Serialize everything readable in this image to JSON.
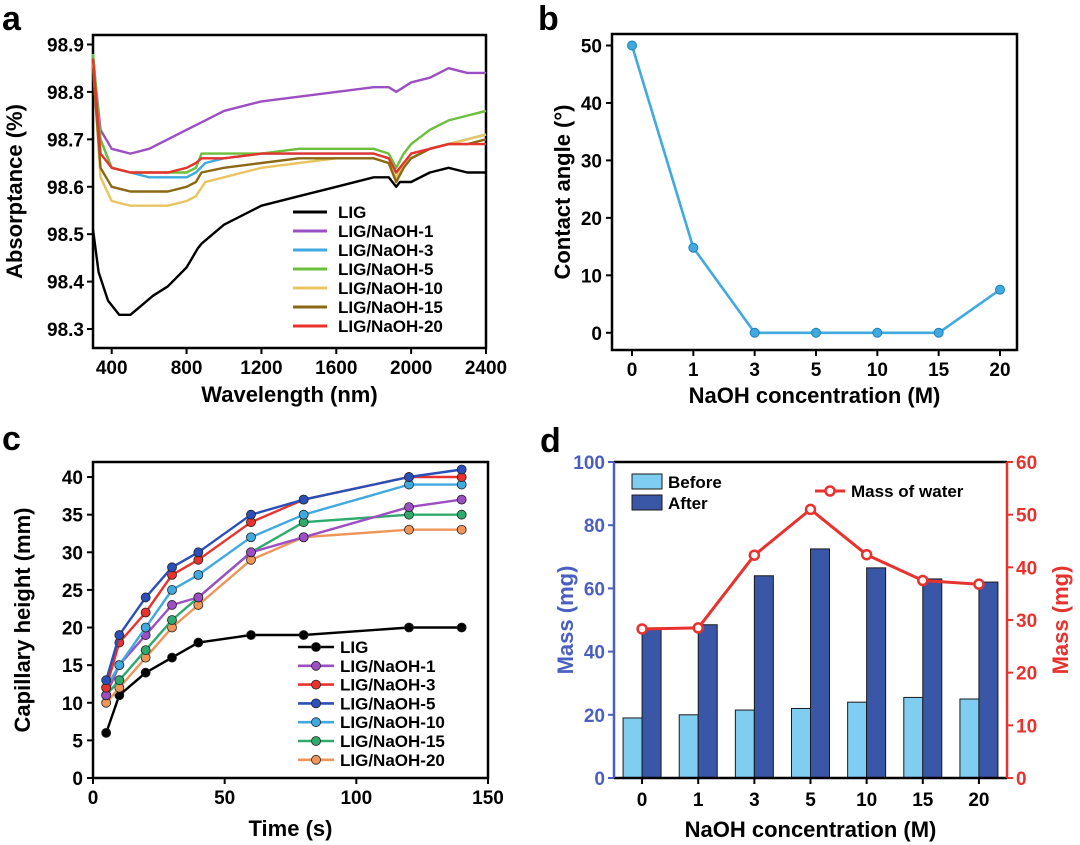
{
  "chart_data": [
    {
      "panel": "a",
      "type": "line",
      "xlabel": "Wavelength (nm)",
      "ylabel": "Absorptance (%)",
      "xlim": [
        300,
        2400
      ],
      "ylim": [
        98.26,
        98.92
      ],
      "xticks": [
        400,
        800,
        1200,
        1600,
        2000,
        2400
      ],
      "yticks": [
        98.3,
        98.4,
        98.5,
        98.6,
        98.7,
        98.8,
        98.9
      ],
      "legend_position": "bottom-right",
      "series": [
        {
          "name": "LIG",
          "color": "#000000",
          "x": [
            300,
            330,
            380,
            440,
            500,
            560,
            620,
            700,
            800,
            860,
            880,
            1000,
            1200,
            1400,
            1600,
            1800,
            1880,
            1920,
            1940,
            2000,
            2100,
            2200,
            2300,
            2400
          ],
          "y": [
            98.51,
            98.42,
            98.36,
            98.33,
            98.33,
            98.35,
            98.37,
            98.39,
            98.43,
            98.47,
            98.48,
            98.52,
            98.56,
            98.58,
            98.6,
            98.62,
            98.62,
            98.6,
            98.61,
            98.61,
            98.63,
            98.64,
            98.63,
            98.63
          ]
        },
        {
          "name": "LIG/NaOH-1",
          "color": "#9b4fc3",
          "x": [
            300,
            340,
            400,
            500,
            600,
            700,
            800,
            900,
            1000,
            1200,
            1400,
            1600,
            1800,
            1880,
            1920,
            1960,
            2000,
            2100,
            2200,
            2300,
            2400
          ],
          "y": [
            98.87,
            98.72,
            98.68,
            98.67,
            98.68,
            98.7,
            98.72,
            98.74,
            98.76,
            98.78,
            98.79,
            98.8,
            98.81,
            98.81,
            98.8,
            98.81,
            98.82,
            98.83,
            98.85,
            98.84,
            98.84
          ]
        },
        {
          "name": "LIG/NaOH-3",
          "color": "#3fa9e0",
          "x": [
            300,
            340,
            400,
            500,
            600,
            700,
            800,
            850,
            900,
            1000,
            1200,
            1400,
            1600,
            1800,
            1880,
            1920,
            1960,
            2000,
            2100,
            2200,
            2300,
            2400
          ],
          "y": [
            98.88,
            98.7,
            98.64,
            98.63,
            98.62,
            98.62,
            98.62,
            98.63,
            98.65,
            98.66,
            98.67,
            98.67,
            98.67,
            98.67,
            98.66,
            98.63,
            98.65,
            98.66,
            98.68,
            98.69,
            98.7,
            98.71
          ]
        },
        {
          "name": "LIG/NaOH-5",
          "color": "#6bbf3a",
          "x": [
            300,
            340,
            400,
            500,
            600,
            700,
            800,
            850,
            880,
            1000,
            1200,
            1400,
            1600,
            1800,
            1880,
            1920,
            1960,
            2000,
            2100,
            2200,
            2300,
            2400
          ],
          "y": [
            98.88,
            98.7,
            98.64,
            98.63,
            98.63,
            98.63,
            98.63,
            98.64,
            98.67,
            98.67,
            98.67,
            98.68,
            98.68,
            98.68,
            98.67,
            98.64,
            98.67,
            98.69,
            98.72,
            98.74,
            98.75,
            98.76
          ]
        },
        {
          "name": "LIG/NaOH-10",
          "color": "#e8c560",
          "x": [
            300,
            340,
            400,
            500,
            600,
            700,
            800,
            850,
            900,
            1000,
            1200,
            1400,
            1600,
            1800,
            1880,
            1920,
            1960,
            2000,
            2100,
            2200,
            2300,
            2400
          ],
          "y": [
            98.86,
            98.62,
            98.57,
            98.56,
            98.56,
            98.56,
            98.57,
            98.58,
            98.61,
            98.62,
            98.64,
            98.65,
            98.66,
            98.66,
            98.65,
            98.62,
            98.65,
            98.66,
            98.68,
            98.69,
            98.7,
            98.71
          ]
        },
        {
          "name": "LIG/NaOH-15",
          "color": "#8b6914",
          "x": [
            300,
            340,
            400,
            500,
            600,
            700,
            800,
            850,
            880,
            1000,
            1200,
            1400,
            1600,
            1800,
            1880,
            1920,
            1960,
            2000,
            2100,
            2200,
            2300,
            2400
          ],
          "y": [
            98.85,
            98.64,
            98.6,
            98.59,
            98.59,
            98.59,
            98.6,
            98.61,
            98.63,
            98.64,
            98.65,
            98.66,
            98.66,
            98.66,
            98.65,
            98.61,
            98.64,
            98.66,
            98.68,
            98.69,
            98.69,
            98.7
          ]
        },
        {
          "name": "LIG/NaOH-20",
          "color": "#e8322e",
          "x": [
            300,
            340,
            400,
            500,
            600,
            700,
            800,
            850,
            880,
            1000,
            1200,
            1400,
            1600,
            1800,
            1880,
            1920,
            1960,
            2000,
            2100,
            2200,
            2300,
            2400
          ],
          "y": [
            98.87,
            98.67,
            98.64,
            98.63,
            98.63,
            98.63,
            98.64,
            98.65,
            98.66,
            98.66,
            98.67,
            98.67,
            98.67,
            98.67,
            98.66,
            98.63,
            98.65,
            98.67,
            98.68,
            98.69,
            98.69,
            98.69
          ]
        }
      ]
    },
    {
      "panel": "b",
      "type": "line",
      "xlabel": "NaOH concentration (M)",
      "ylabel": "Contact angle (°)",
      "ylim": [
        -3,
        52
      ],
      "yticks": [
        0,
        10,
        20,
        30,
        40,
        50
      ],
      "categories": [
        "0",
        "1",
        "3",
        "5",
        "10",
        "15",
        "20"
      ],
      "series": [
        {
          "name": "Contact angle",
          "color": "#3fa9e0",
          "values": [
            50,
            14.8,
            0,
            0,
            0,
            0,
            7.5
          ]
        }
      ]
    },
    {
      "panel": "c",
      "type": "line",
      "xlabel": "Time (s)",
      "ylabel": "Capillary height (mm)",
      "xlim": [
        0,
        150
      ],
      "ylim": [
        0,
        42
      ],
      "xticks": [
        0,
        50,
        100,
        150
      ],
      "yticks": [
        0,
        5,
        10,
        15,
        20,
        25,
        30,
        35,
        40
      ],
      "legend_position": "bottom-right",
      "x": [
        5,
        10,
        20,
        30,
        40,
        60,
        80,
        120,
        140
      ],
      "series": [
        {
          "name": "LIG",
          "color": "#000000",
          "values": [
            6,
            11,
            14,
            16,
            18,
            19,
            19,
            20,
            20
          ]
        },
        {
          "name": "LIG/NaOH-1",
          "color": "#9b4fc3",
          "values": [
            11,
            15,
            19,
            23,
            24,
            30,
            32,
            36,
            37
          ]
        },
        {
          "name": "LIG/NaOH-3",
          "color": "#e8322e",
          "values": [
            12,
            18,
            22,
            27,
            29,
            34,
            37,
            40,
            40
          ]
        },
        {
          "name": "LIG/NaOH-5",
          "color": "#2b4fb8",
          "values": [
            13,
            19,
            24,
            28,
            30,
            35,
            37,
            40,
            41
          ]
        },
        {
          "name": "LIG/NaOH-10",
          "color": "#3fa9e0",
          "values": [
            12,
            15,
            20,
            25,
            27,
            32,
            35,
            39,
            39
          ]
        },
        {
          "name": "LIG/NaOH-15",
          "color": "#2eaa6e",
          "values": [
            11,
            13,
            17,
            21,
            24,
            30,
            34,
            35,
            35
          ]
        },
        {
          "name": "LIG/NaOH-20",
          "color": "#f0955a",
          "values": [
            10,
            12,
            16,
            20,
            23,
            29,
            32,
            33,
            33
          ]
        }
      ]
    },
    {
      "panel": "d",
      "type": "bar",
      "xlabel": "NaOH concentration (M)",
      "ylabel": "Mass (mg)",
      "ylabel_right": "Mass (mg)",
      "ylim": [
        0,
        100
      ],
      "ylim_right": [
        0,
        60
      ],
      "yticks": [
        0,
        20,
        40,
        60,
        80,
        100
      ],
      "yticks_right": [
        0,
        10,
        20,
        30,
        40,
        50,
        60
      ],
      "categories": [
        "0",
        "1",
        "3",
        "5",
        "10",
        "15",
        "20"
      ],
      "series": [
        {
          "name": "Before",
          "color": "#7fcdf0",
          "values": [
            19,
            20,
            21.5,
            22,
            24,
            25.5,
            25
          ]
        },
        {
          "name": "After",
          "color": "#3a56a6",
          "values": [
            47.5,
            48.5,
            64,
            72.5,
            66.5,
            63,
            62
          ]
        }
      ],
      "line_series": {
        "name": "Mass of water",
        "color": "#e8322e",
        "axis": "right",
        "values": [
          28.3,
          28.5,
          42.3,
          51,
          42.4,
          37.5,
          36.8
        ]
      },
      "left_axis_color": "#4a5fbf",
      "right_axis_color": "#e8322e"
    }
  ],
  "panels": {
    "a": "a",
    "b": "b",
    "c": "c",
    "d": "d"
  }
}
